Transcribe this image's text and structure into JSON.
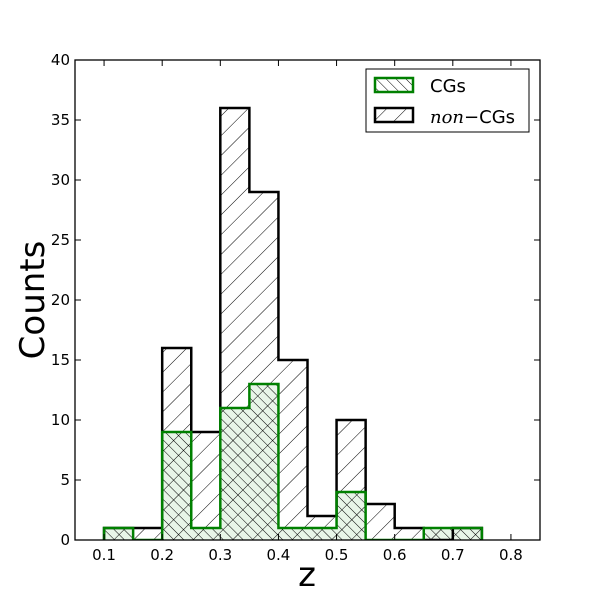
{
  "chart_data": {
    "type": "bar",
    "subtype": "step-histogram",
    "title": "",
    "xlabel": "z",
    "ylabel": "Counts",
    "xlim": [
      0.05,
      0.85
    ],
    "ylim": [
      0,
      40
    ],
    "x_ticks": [
      0.1,
      0.2,
      0.3,
      0.4,
      0.5,
      0.6,
      0.7,
      0.8
    ],
    "x_tick_labels": [
      "0.1",
      "0.2",
      "0.3",
      "0.4",
      "0.5",
      "0.6",
      "0.7",
      "0.8"
    ],
    "y_ticks": [
      0,
      5,
      10,
      15,
      20,
      25,
      30,
      35,
      40
    ],
    "y_tick_labels": [
      "0",
      "5",
      "10",
      "15",
      "20",
      "25",
      "30",
      "35",
      "40"
    ],
    "grid": false,
    "legend": "top-right",
    "bin_edges": [
      0.1,
      0.15,
      0.2,
      0.25,
      0.3,
      0.35,
      0.4,
      0.45,
      0.5,
      0.55,
      0.6,
      0.65,
      0.7,
      0.75
    ],
    "series": [
      {
        "name": "CGs",
        "color": "#008000",
        "hatch": "diagonal-forward",
        "values": [
          1,
          0,
          9,
          1,
          11,
          13,
          1,
          1,
          4,
          0,
          0,
          1,
          1
        ]
      },
      {
        "name_prefix": "non",
        "name_dash": "−",
        "name_suffix": "CGs",
        "color": "#000000",
        "hatch": "diagonal-backward",
        "values": [
          1,
          1,
          16,
          9,
          36,
          29,
          15,
          2,
          10,
          3,
          1,
          0,
          1
        ]
      }
    ]
  }
}
